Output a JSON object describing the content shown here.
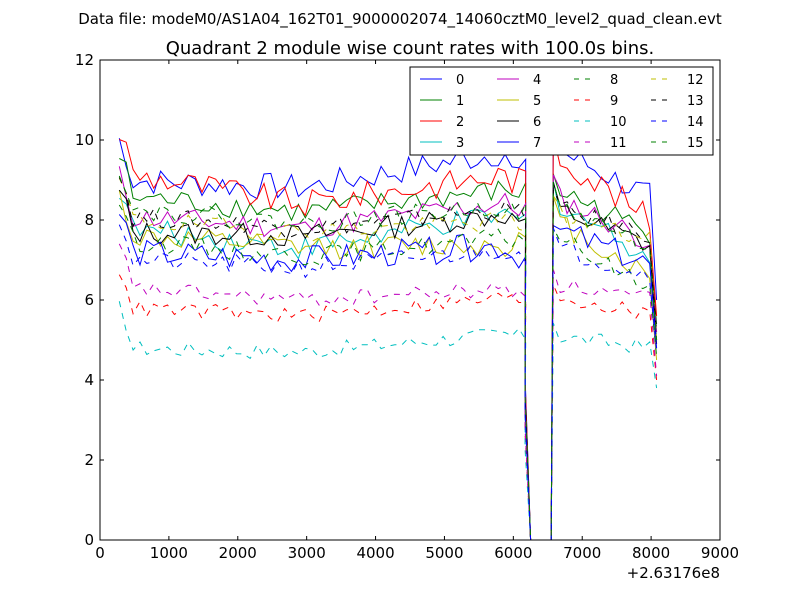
{
  "file_label": "Data file: modeM0/AS1A04_162T01_9000002074_14060cztM0_level2_quad_clean.evt",
  "chart_data": {
    "type": "line",
    "title": "Quadrant 2 module wise count rates with 100.0s bins.",
    "xlabel": "",
    "ylabel": "",
    "x_offset_label": "+2.63176e8",
    "xlim": [
      0,
      9000
    ],
    "ylim": [
      0,
      12
    ],
    "xticks": [
      "0",
      "1000",
      "2000",
      "3000",
      "4000",
      "5000",
      "6000",
      "7000",
      "8000",
      "9000"
    ],
    "yticks": [
      "0",
      "2",
      "4",
      "6",
      "8",
      "10",
      "12"
    ],
    "grid": false,
    "legend_position": "top-right",
    "gap_start": 6250,
    "gap_end": 6550,
    "seg1": [
      280,
      6200
    ],
    "seg2": [
      6580,
      8080
    ],
    "series": [
      {
        "name": "0",
        "color": "#0000ff",
        "dash": "solid",
        "base": 9.0,
        "mid": 8.8,
        "late": 9.8,
        "end": 9.2,
        "post": 9.8,
        "postEnd": 8.5,
        "final": 6.0,
        "noise": 0.35
      },
      {
        "name": "1",
        "color": "#008000",
        "dash": "solid",
        "base": 8.6,
        "mid": 8.2,
        "late": 8.8,
        "end": 8.7,
        "post": 8.8,
        "postEnd": 7.6,
        "final": 5.4,
        "noise": 0.3
      },
      {
        "name": "2",
        "color": "#ff0000",
        "dash": "solid",
        "base": 9.2,
        "mid": 8.4,
        "late": 9.2,
        "end": 9.0,
        "post": 9.7,
        "postEnd": 7.9,
        "final": 5.6,
        "noise": 0.35
      },
      {
        "name": "3",
        "color": "#00bfbf",
        "dash": "solid",
        "base": 7.8,
        "mid": 7.3,
        "late": 8.2,
        "end": 8.0,
        "post": 8.5,
        "postEnd": 7.0,
        "final": 5.0,
        "noise": 0.3
      },
      {
        "name": "4",
        "color": "#bf00bf",
        "dash": "solid",
        "base": 8.1,
        "mid": 7.8,
        "late": 8.5,
        "end": 8.3,
        "post": 8.6,
        "postEnd": 7.4,
        "final": 5.2,
        "noise": 0.3
      },
      {
        "name": "5",
        "color": "#bfbf00",
        "dash": "solid",
        "base": 7.6,
        "mid": 7.3,
        "late": 7.4,
        "end": 7.5,
        "post": 8.0,
        "postEnd": 6.5,
        "final": 4.5,
        "noise": 0.3
      },
      {
        "name": "6",
        "color": "#000000",
        "dash": "solid",
        "base": 7.7,
        "mid": 7.6,
        "late": 8.2,
        "end": 8.0,
        "post": 8.3,
        "postEnd": 7.3,
        "final": 4.9,
        "noise": 0.3
      },
      {
        "name": "7",
        "color": "#0000ff",
        "dash": "solid",
        "base": 7.2,
        "mid": 7.0,
        "late": 7.4,
        "end": 7.1,
        "post": 7.8,
        "postEnd": 6.8,
        "final": 4.8,
        "noise": 0.35
      },
      {
        "name": "8",
        "color": "#008000",
        "dash": "dashed",
        "base": 7.5,
        "mid": 7.1,
        "late": 7.6,
        "end": 7.5,
        "post": 7.6,
        "postEnd": 6.2,
        "final": 4.6,
        "noise": 0.25
      },
      {
        "name": "9",
        "color": "#ff0000",
        "dash": "dashed",
        "base": 5.8,
        "mid": 5.6,
        "late": 6.1,
        "end": 6.0,
        "post": 6.1,
        "postEnd": 5.6,
        "final": 4.0,
        "noise": 0.2
      },
      {
        "name": "10",
        "color": "#00bfbf",
        "dash": "dashed",
        "base": 4.8,
        "mid": 4.7,
        "late": 5.2,
        "end": 5.1,
        "post": 5.1,
        "postEnd": 4.8,
        "final": 3.8,
        "noise": 0.2
      },
      {
        "name": "11",
        "color": "#bf00bf",
        "dash": "dashed",
        "base": 6.3,
        "mid": 6.0,
        "late": 6.3,
        "end": 6.2,
        "post": 6.4,
        "postEnd": 6.0,
        "final": 4.1,
        "noise": 0.2
      },
      {
        "name": "12",
        "color": "#bfbf00",
        "dash": "dashed",
        "base": 8.0,
        "mid": 7.7,
        "late": 8.0,
        "end": 7.9,
        "post": 8.2,
        "postEnd": 7.4,
        "final": 5.0,
        "noise": 0.25
      },
      {
        "name": "13",
        "color": "#000000",
        "dash": "dashed",
        "base": 8.1,
        "mid": 7.8,
        "late": 8.3,
        "end": 8.2,
        "post": 8.3,
        "postEnd": 7.6,
        "final": 5.2,
        "noise": 0.25
      },
      {
        "name": "14",
        "color": "#0000ff",
        "dash": "dashed",
        "base": 7.0,
        "mid": 6.8,
        "late": 7.3,
        "end": 7.2,
        "post": 7.3,
        "postEnd": 6.6,
        "final": 4.7,
        "noise": 0.25
      },
      {
        "name": "15",
        "color": "#008000",
        "dash": "dashed",
        "base": 8.3,
        "mid": 7.9,
        "late": 8.4,
        "end": 8.2,
        "post": 8.4,
        "postEnd": 7.3,
        "final": 5.0,
        "noise": 0.25
      }
    ]
  }
}
